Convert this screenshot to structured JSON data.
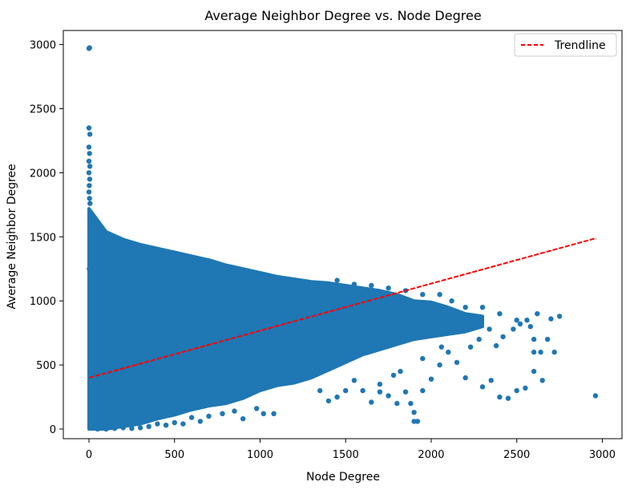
{
  "chart_data": {
    "type": "scatter",
    "title": "Average Neighbor Degree vs. Node Degree",
    "xlabel": "Node Degree",
    "ylabel": "Average Neighbor Degree",
    "xlim": [
      -150,
      3115
    ],
    "ylim": [
      -75,
      3110
    ],
    "xticks": [
      0,
      500,
      1000,
      1500,
      2000,
      2500,
      3000
    ],
    "yticks": [
      0,
      500,
      1000,
      1500,
      2000,
      2500,
      3000
    ],
    "grid": false,
    "legend": {
      "placement": "top-right",
      "entries": [
        "Trendline"
      ]
    },
    "colors": {
      "points": "#1f77b4",
      "trendline": "#ff0000"
    },
    "trendline": {
      "x": [
        0,
        2965
      ],
      "y": [
        400,
        1490
      ]
    },
    "dense_region_x": [
      0,
      100,
      200,
      300,
      400,
      500,
      600,
      700,
      800,
      900,
      1000,
      1100,
      1200,
      1300,
      1400,
      1500,
      1600,
      1700,
      1800,
      1900,
      2000,
      2100,
      2200,
      2300
    ],
    "dense_region_upper": [
      1720,
      1540,
      1480,
      1440,
      1410,
      1380,
      1350,
      1320,
      1280,
      1250,
      1220,
      1190,
      1170,
      1150,
      1140,
      1120,
      1100,
      1080,
      1050,
      1000,
      990,
      950,
      900,
      880
    ],
    "dense_region_lower": [
      0,
      0,
      20,
      40,
      80,
      110,
      150,
      180,
      200,
      240,
      300,
      340,
      360,
      400,
      460,
      520,
      580,
      620,
      660,
      700,
      720,
      740,
      760,
      800
    ],
    "points": [
      [
        0,
        2970
      ],
      [
        3,
        2975
      ],
      [
        0,
        2350
      ],
      [
        5,
        2300
      ],
      [
        0,
        2200
      ],
      [
        3,
        2150
      ],
      [
        0,
        2090
      ],
      [
        5,
        2050
      ],
      [
        0,
        2000
      ],
      [
        4,
        1950
      ],
      [
        2,
        1900
      ],
      [
        0,
        1850
      ],
      [
        3,
        1800
      ],
      [
        6,
        1760
      ],
      [
        2,
        1250
      ],
      [
        10,
        1100
      ],
      [
        1850,
        290
      ],
      [
        1900,
        130
      ],
      [
        1950,
        300
      ],
      [
        1800,
        200
      ],
      [
        1700,
        290
      ],
      [
        2000,
        390
      ],
      [
        1950,
        550
      ],
      [
        2050,
        500
      ],
      [
        1650,
        210
      ],
      [
        2100,
        600
      ],
      [
        2200,
        400
      ],
      [
        2150,
        520
      ],
      [
        2300,
        330
      ],
      [
        2350,
        380
      ],
      [
        2400,
        250
      ],
      [
        2450,
        240
      ],
      [
        2500,
        300
      ],
      [
        2550,
        320
      ],
      [
        2600,
        450
      ],
      [
        2650,
        380
      ],
      [
        2700,
        860
      ],
      [
        2750,
        880
      ],
      [
        2640,
        600
      ],
      [
        2600,
        600
      ],
      [
        2580,
        800
      ],
      [
        2620,
        900
      ],
      [
        2560,
        850
      ],
      [
        2520,
        820
      ],
      [
        2480,
        780
      ],
      [
        2420,
        720
      ],
      [
        2380,
        650
      ],
      [
        2340,
        780
      ],
      [
        2280,
        700
      ],
      [
        2230,
        640
      ],
      [
        2180,
        800
      ],
      [
        1920,
        60
      ],
      [
        1900,
        60
      ],
      [
        1880,
        200
      ],
      [
        1750,
        260
      ],
      [
        1600,
        300
      ],
      [
        1550,
        380
      ],
      [
        1500,
        300
      ],
      [
        1450,
        250
      ],
      [
        1400,
        220
      ],
      [
        1350,
        300
      ],
      [
        1700,
        350
      ],
      [
        1780,
        420
      ],
      [
        1820,
        450
      ],
      [
        2060,
        640
      ],
      [
        1080,
        120
      ],
      [
        1020,
        120
      ],
      [
        980,
        160
      ],
      [
        900,
        80
      ],
      [
        850,
        140
      ],
      [
        780,
        120
      ],
      [
        700,
        100
      ],
      [
        650,
        60
      ],
      [
        600,
        90
      ],
      [
        550,
        40
      ],
      [
        500,
        50
      ],
      [
        450,
        30
      ],
      [
        400,
        40
      ],
      [
        350,
        20
      ],
      [
        300,
        10
      ],
      [
        250,
        5
      ],
      [
        200,
        10
      ],
      [
        150,
        5
      ],
      [
        100,
        0
      ],
      [
        50,
        0
      ],
      [
        2960,
        260
      ],
      [
        2720,
        600
      ],
      [
        2680,
        700
      ],
      [
        2600,
        700
      ],
      [
        2500,
        850
      ],
      [
        2400,
        900
      ],
      [
        2300,
        950
      ],
      [
        2200,
        950
      ],
      [
        2120,
        1000
      ],
      [
        2050,
        1050
      ],
      [
        1950,
        1050
      ],
      [
        1850,
        1080
      ],
      [
        1750,
        1100
      ],
      [
        1650,
        1120
      ],
      [
        1550,
        1130
      ],
      [
        1450,
        1160
      ]
    ]
  }
}
